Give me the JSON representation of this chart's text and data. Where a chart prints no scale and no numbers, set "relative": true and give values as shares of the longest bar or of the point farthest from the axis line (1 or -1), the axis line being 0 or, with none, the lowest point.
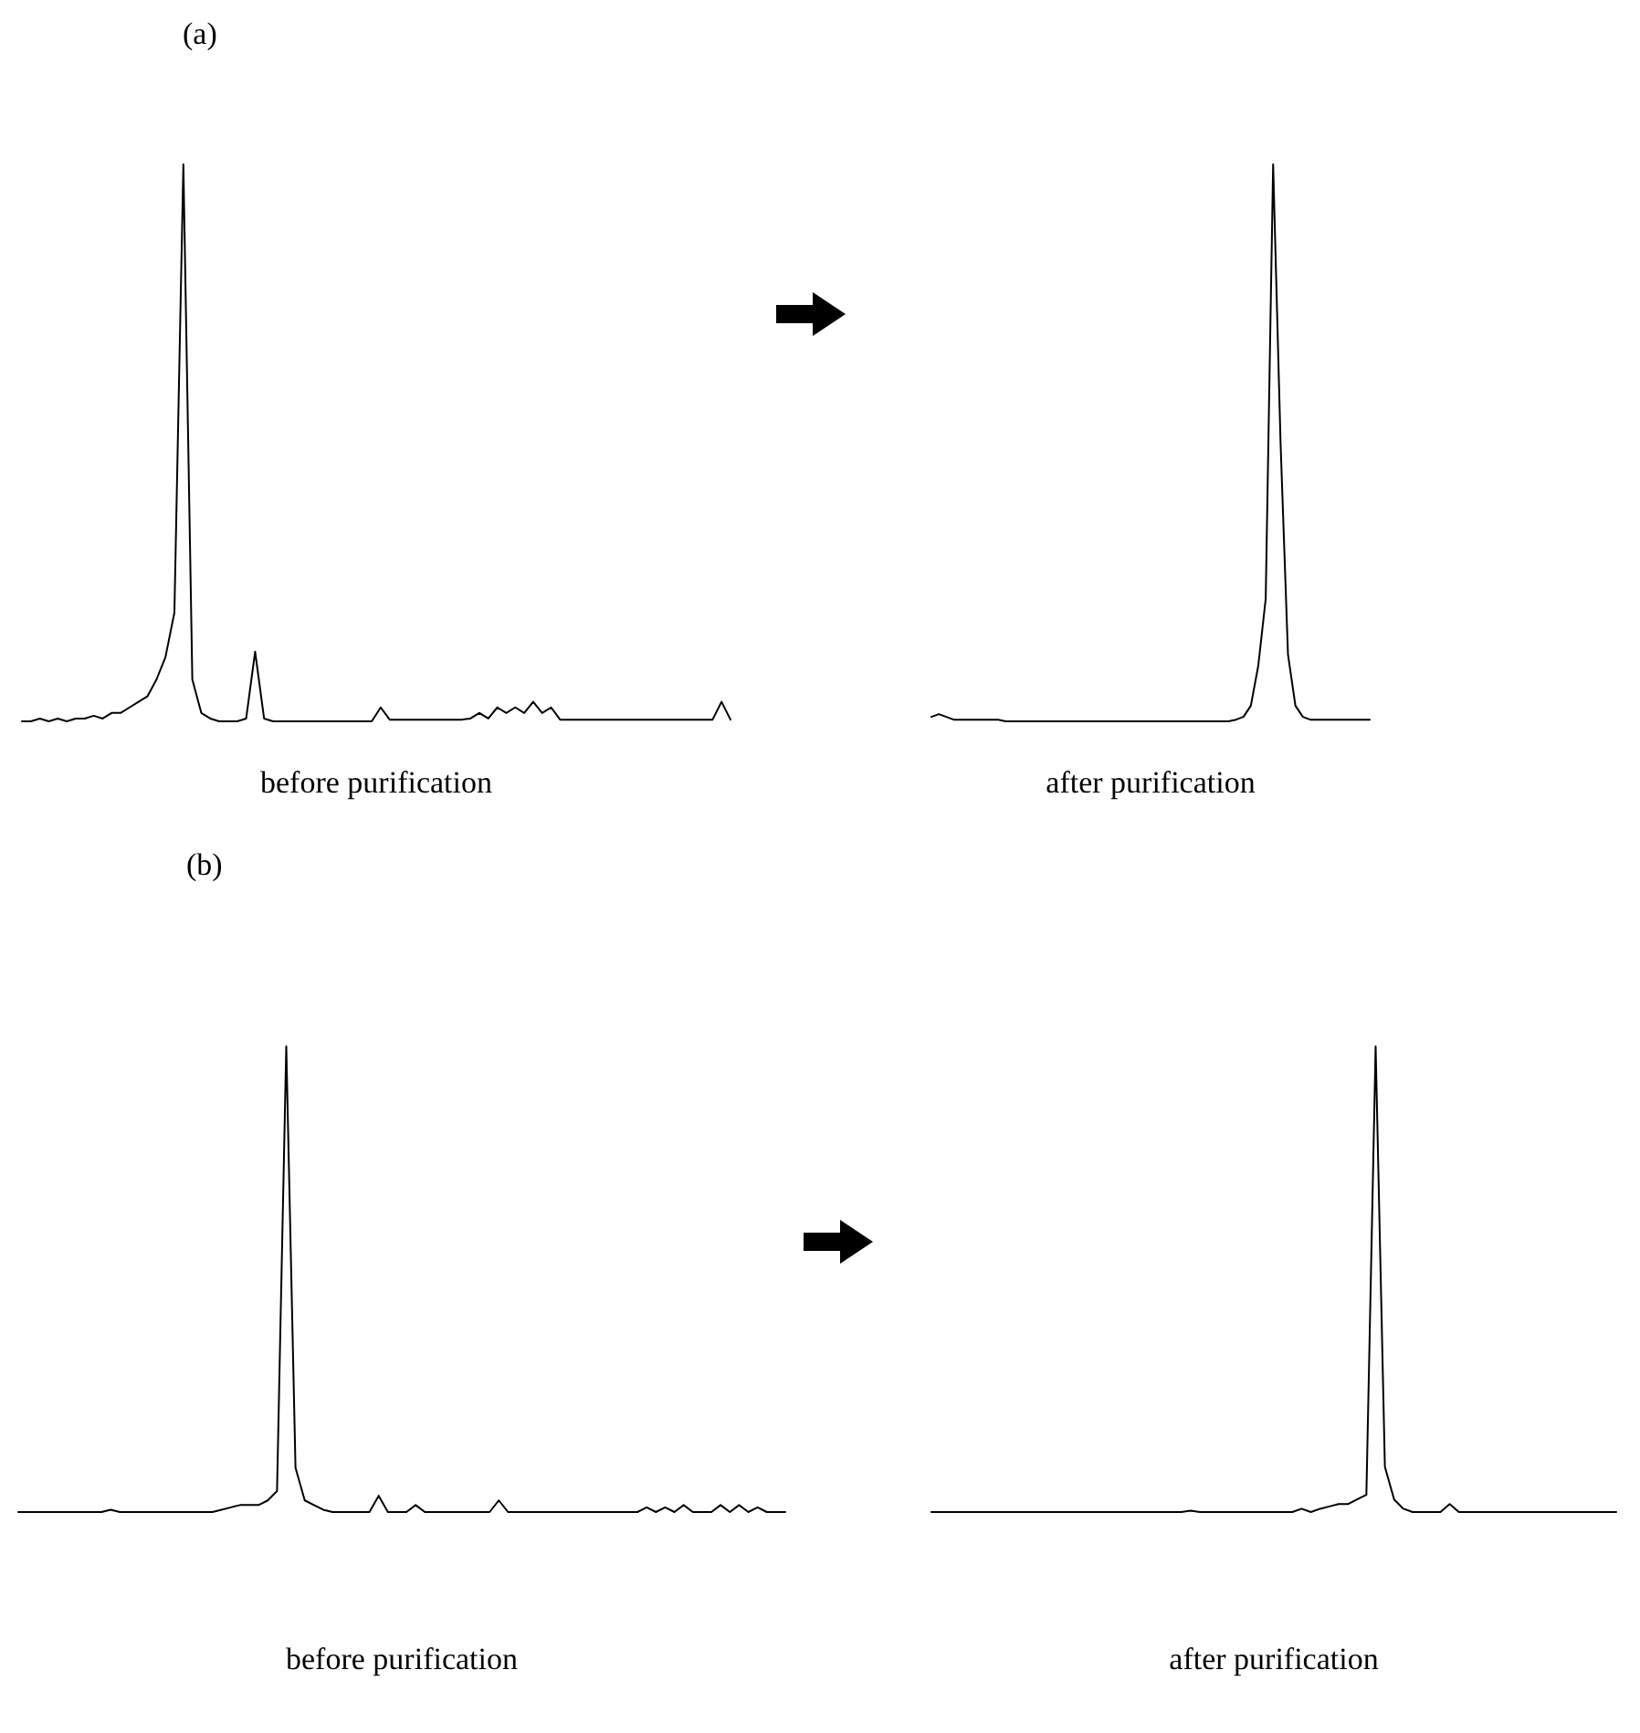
{
  "chart_data": [
    {
      "type": "line",
      "title": "(a)",
      "xlabel": "before purification",
      "relative": true,
      "marker": "none",
      "color": "#000000",
      "categories": [
        null,
        null,
        null,
        null,
        null,
        null,
        null,
        null,
        null,
        null,
        null,
        null,
        null,
        null,
        null,
        null,
        null,
        null,
        null,
        null,
        null,
        null,
        null,
        null,
        null,
        null,
        null,
        null,
        null,
        null,
        null,
        null,
        null,
        null,
        null,
        null,
        null,
        null,
        null,
        null,
        null,
        null,
        null,
        null,
        null,
        null,
        null,
        null,
        null,
        null,
        null,
        null,
        null,
        null,
        null,
        null,
        null,
        null,
        null,
        null,
        null,
        null,
        null,
        null,
        null,
        null,
        null,
        null,
        null,
        null,
        null,
        null,
        null,
        null,
        null,
        null,
        null,
        null,
        null,
        null
      ],
      "values": [
        0,
        0,
        0.005,
        0,
        0.005,
        0,
        0.005,
        0.005,
        0.01,
        0.005,
        0.015,
        0.015,
        0.025,
        0.035,
        0.045,
        0.075,
        0.115,
        0.195,
        1,
        0.075,
        0.015,
        0.005,
        0,
        0,
        0,
        0.005,
        0.125,
        0.005,
        0,
        0,
        0,
        0,
        0,
        0,
        0,
        0,
        0,
        0,
        0,
        0,
        0.025,
        0.003,
        0.003,
        0.003,
        0.003,
        0.003,
        0.003,
        0.003,
        0.003,
        0.003,
        0.005,
        0.015,
        0.005,
        0.025,
        0.015,
        0.025,
        0.015,
        0.035,
        0.015,
        0.025,
        0.003,
        0.003,
        0.003,
        0.003,
        0.003,
        0.003,
        0.003,
        0.003,
        0.003,
        0.003,
        0.003,
        0.003,
        0.003,
        0.003,
        0.003,
        0.003,
        0.003,
        0.003,
        0.035,
        0.003
      ]
    },
    {
      "type": "line",
      "xlabel": "after purification",
      "relative": true,
      "marker": "none",
      "color": "#000000",
      "categories": [
        null,
        null,
        null,
        null,
        null,
        null,
        null,
        null,
        null,
        null,
        null,
        null,
        null,
        null,
        null,
        null,
        null,
        null,
        null,
        null,
        null,
        null,
        null,
        null,
        null,
        null,
        null,
        null,
        null,
        null,
        null,
        null,
        null,
        null,
        null,
        null,
        null,
        null,
        null,
        null,
        null,
        null,
        null,
        null,
        null,
        null,
        null,
        null,
        null,
        null,
        null,
        null,
        null,
        null,
        null,
        null,
        null,
        null,
        null,
        null
      ],
      "values": [
        0.008,
        0.013,
        0.008,
        0.003,
        0.003,
        0.003,
        0.003,
        0.003,
        0.003,
        0.003,
        0,
        0,
        0,
        0,
        0,
        0,
        0,
        0,
        0,
        0,
        0,
        0,
        0,
        0,
        0,
        0,
        0,
        0,
        0,
        0,
        0,
        0,
        0,
        0,
        0,
        0,
        0,
        0,
        0,
        0,
        0,
        0.003,
        0.008,
        0.028,
        0.1,
        0.22,
        1,
        0.5,
        0.12,
        0.028,
        0.008,
        0.003,
        0.003,
        0.003,
        0.003,
        0.003,
        0.003,
        0.003,
        0.003,
        0.003
      ]
    },
    {
      "type": "line",
      "title": "(b)",
      "xlabel": "before purification",
      "relative": true,
      "marker": "none",
      "color": "#000000",
      "categories": [
        null,
        null,
        null,
        null,
        null,
        null,
        null,
        null,
        null,
        null,
        null,
        null,
        null,
        null,
        null,
        null,
        null,
        null,
        null,
        null,
        null,
        null,
        null,
        null,
        null,
        null,
        null,
        null,
        null,
        null,
        null,
        null,
        null,
        null,
        null,
        null,
        null,
        null,
        null,
        null,
        null,
        null,
        null,
        null,
        null,
        null,
        null,
        null,
        null,
        null,
        null,
        null,
        null,
        null,
        null,
        null,
        null,
        null,
        null,
        null,
        null,
        null,
        null,
        null,
        null,
        null,
        null,
        null,
        null,
        null,
        null,
        null,
        null,
        null,
        null,
        null,
        null,
        null,
        null,
        null,
        null,
        null,
        null,
        null
      ],
      "values": [
        0,
        0,
        0,
        0,
        0,
        0,
        0,
        0,
        0,
        0,
        0.005,
        0,
        0,
        0,
        0,
        0,
        0,
        0,
        0,
        0,
        0,
        0,
        0.005,
        0.01,
        0.015,
        0.015,
        0.015,
        0.025,
        0.045,
        1,
        0.095,
        0.025,
        0.015,
        0.005,
        0,
        0,
        0,
        0,
        0,
        0.035,
        0,
        0,
        0,
        0.015,
        0,
        0,
        0,
        0,
        0,
        0,
        0,
        0,
        0.025,
        0,
        0,
        0,
        0,
        0,
        0,
        0,
        0,
        0,
        0,
        0,
        0,
        0,
        0,
        0,
        0.01,
        0,
        0.01,
        0,
        0.015,
        0,
        0,
        0,
        0.015,
        0,
        0.015,
        0,
        0.01,
        0,
        0,
        0
      ]
    },
    {
      "type": "line",
      "xlabel": "after purification",
      "relative": true,
      "marker": "none",
      "color": "#000000",
      "categories": [
        null,
        null,
        null,
        null,
        null,
        null,
        null,
        null,
        null,
        null,
        null,
        null,
        null,
        null,
        null,
        null,
        null,
        null,
        null,
        null,
        null,
        null,
        null,
        null,
        null,
        null,
        null,
        null,
        null,
        null,
        null,
        null,
        null,
        null,
        null,
        null,
        null,
        null,
        null,
        null,
        null,
        null,
        null,
        null,
        null,
        null,
        null,
        null,
        null,
        null,
        null,
        null,
        null,
        null,
        null,
        null,
        null,
        null,
        null,
        null,
        null,
        null,
        null,
        null,
        null,
        null,
        null,
        null,
        null,
        null,
        null,
        null,
        null,
        null,
        null
      ],
      "values": [
        0,
        0,
        0,
        0,
        0,
        0,
        0,
        0,
        0,
        0,
        0,
        0,
        0,
        0,
        0,
        0,
        0,
        0,
        0,
        0,
        0,
        0,
        0,
        0,
        0,
        0,
        0,
        0,
        0.003,
        0,
        0,
        0,
        0,
        0,
        0,
        0,
        0,
        0,
        0,
        0,
        0.007,
        0,
        0.007,
        0.012,
        0.017,
        0.017,
        0.027,
        0.037,
        1,
        0.097,
        0.027,
        0.007,
        0,
        0,
        0,
        0,
        0.017,
        0,
        0,
        0,
        0,
        0,
        0,
        0,
        0,
        0,
        0,
        0,
        0,
        0,
        0,
        0,
        0,
        0,
        0
      ]
    }
  ]
}
